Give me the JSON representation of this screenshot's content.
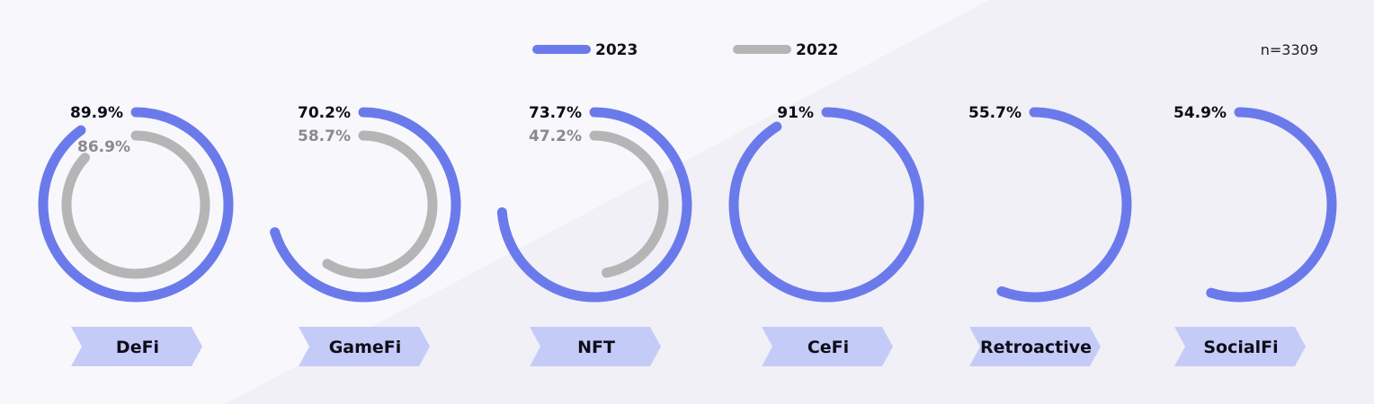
{
  "chart_data": {
    "type": "radial-bar",
    "note": "n=3309",
    "legend_position": "top-center",
    "series": [
      {
        "name": "2023",
        "color": "#6b7aeb",
        "values": [
          89.9,
          70.2,
          73.7,
          91,
          55.7,
          54.9
        ]
      },
      {
        "name": "2022",
        "color": "#b5b5b5",
        "values": [
          86.9,
          58.7,
          47.2,
          null,
          null,
          null
        ]
      }
    ],
    "categories": [
      "DeFi",
      "GameFi",
      "NFT",
      "CeFi",
      "Retroactive",
      "SocialFi"
    ],
    "labels_2023": [
      "89.9%",
      "70.2%",
      "73.7%",
      "91%",
      "55.7%",
      "54.9%"
    ],
    "labels_2022": [
      "86.9%",
      "58.7%",
      "47.2%",
      "",
      "",
      ""
    ],
    "label_color_2023": "#0d0d1a",
    "label_color_2022": "#8a8a8a",
    "tag_color": "#c5cbf7",
    "ylim": [
      0,
      100
    ]
  }
}
